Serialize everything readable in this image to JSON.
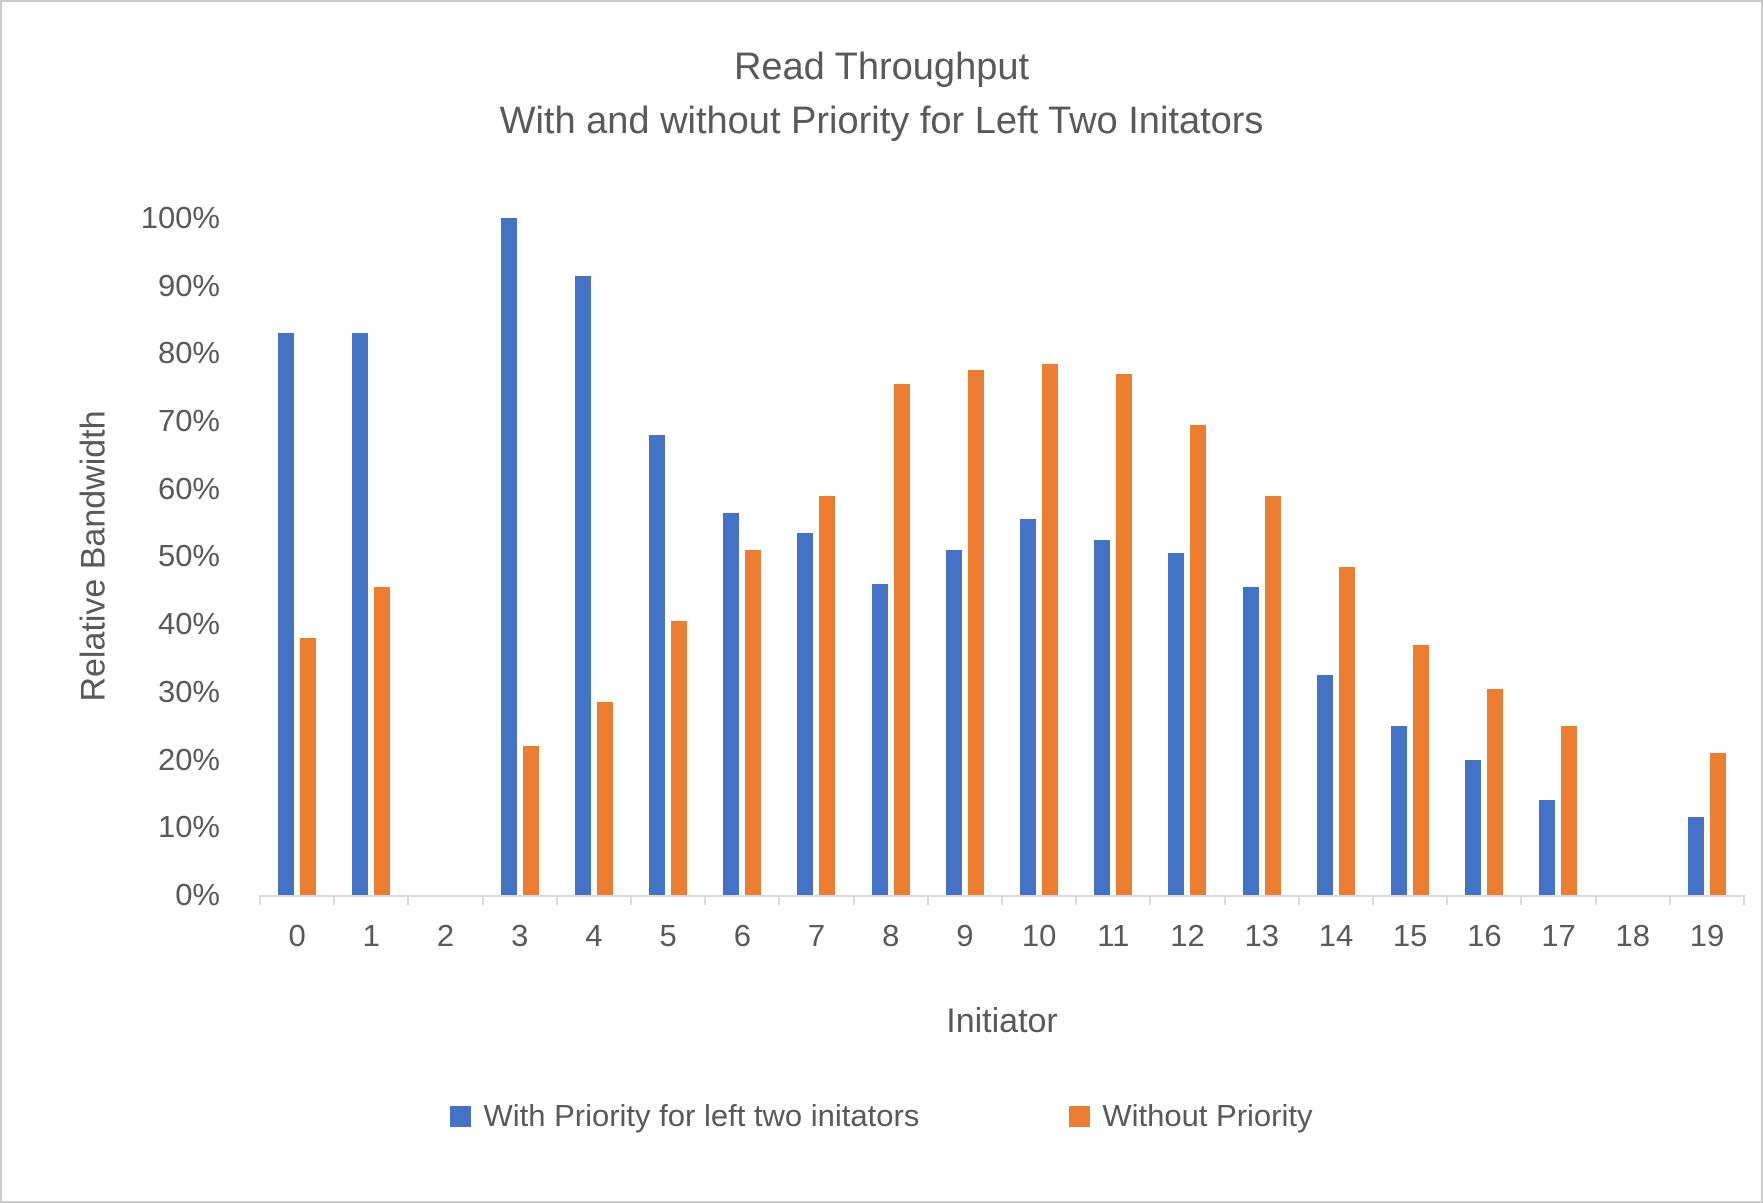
{
  "title": {
    "line1": "Read Throughput",
    "line2": "With and without Priority for Left Two Initators"
  },
  "y_axis": {
    "title": "Relative Bandwidth",
    "tick_labels_top_to_bottom": [
      "100%",
      "90%",
      "80%",
      "70%",
      "60%",
      "50%",
      "40%",
      "30%",
      "20%",
      "10%",
      "0%"
    ]
  },
  "x_axis": {
    "title": "Initiator",
    "tick_labels": [
      "0",
      "1",
      "2",
      "3",
      "4",
      "5",
      "6",
      "7",
      "8",
      "9",
      "10",
      "11",
      "12",
      "13",
      "14",
      "15",
      "16",
      "17",
      "18",
      "19"
    ]
  },
  "legend": {
    "items": [
      {
        "label": "With Priority for left two initators",
        "color": "#4472C4"
      },
      {
        "label": "Without Priority",
        "color": "#ED7D31"
      }
    ]
  },
  "colors": {
    "series_blue": "#4472C4",
    "series_orange": "#ED7D31",
    "axis_line": "#D9D9D9",
    "text": "#595959"
  },
  "chart_data": {
    "type": "bar",
    "title": "Read Throughput With and without Priority for Left Two Initators",
    "xlabel": "Initiator",
    "ylabel": "Relative Bandwidth",
    "ylim": [
      0,
      100
    ],
    "y_unit": "%",
    "grid": false,
    "legend_position": "bottom",
    "categories": [
      0,
      1,
      2,
      3,
      4,
      5,
      6,
      7,
      8,
      9,
      10,
      11,
      12,
      13,
      14,
      15,
      16,
      17,
      18,
      19
    ],
    "series": [
      {
        "name": "With Priority for left two initators",
        "color": "#4472C4",
        "values": [
          83,
          83,
          0,
          100,
          91.5,
          68,
          56.5,
          53.5,
          46,
          51,
          55.5,
          52.5,
          50.5,
          45.5,
          32.5,
          25,
          20,
          14,
          0,
          11.5
        ]
      },
      {
        "name": "Without Priority",
        "color": "#ED7D31",
        "values": [
          38,
          45.5,
          0,
          22,
          28.5,
          40.5,
          51,
          59,
          75.5,
          77.5,
          78.5,
          77,
          69.5,
          59,
          48.5,
          37,
          30.5,
          25,
          0,
          21
        ]
      }
    ]
  }
}
